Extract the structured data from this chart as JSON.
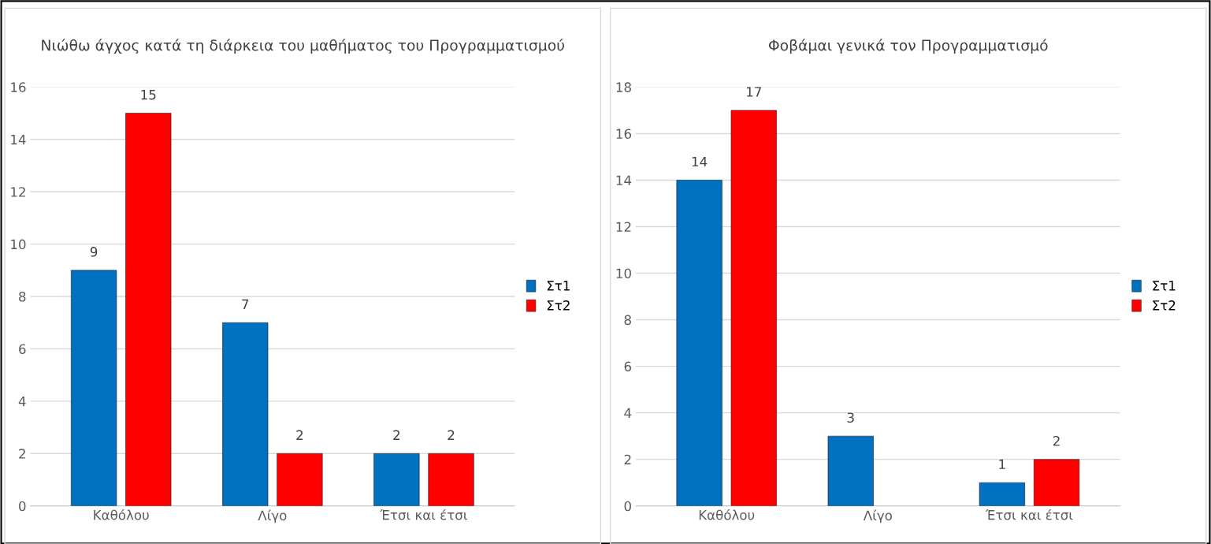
{
  "chart_data": [
    {
      "type": "bar",
      "title": "Νιώθω άγχος κατά τη διάρκεια του μαθήματος του Προγραμματισμού",
      "categories": [
        "Καθόλου",
        "Λίγο",
        "Έτσι και έτσι"
      ],
      "series": [
        {
          "name": "Στ1",
          "color": "#0070c0",
          "values": [
            9,
            7,
            2
          ]
        },
        {
          "name": "Στ2",
          "color": "#ff0000",
          "values": [
            15,
            2,
            2
          ]
        }
      ],
      "ylim": [
        0,
        16
      ],
      "yticks": [
        0,
        2,
        4,
        6,
        8,
        10,
        12,
        14,
        16
      ],
      "grid": "y",
      "legend": "right",
      "data_labels": true
    },
    {
      "type": "bar",
      "title": "Φοβάμαι γενικά τον Προγραμματισμό",
      "categories": [
        "Καθόλου",
        "Λίγο",
        "Έτσι και έτσι"
      ],
      "series": [
        {
          "name": "Στ1",
          "color": "#0070c0",
          "values": [
            14,
            3,
            1
          ]
        },
        {
          "name": "Στ2",
          "color": "#ff0000",
          "values": [
            17,
            null,
            2
          ]
        }
      ],
      "ylim": [
        0,
        18
      ],
      "yticks": [
        0,
        2,
        4,
        6,
        8,
        10,
        12,
        14,
        16,
        18
      ],
      "grid": "y",
      "legend": "right",
      "data_labels": true
    }
  ]
}
